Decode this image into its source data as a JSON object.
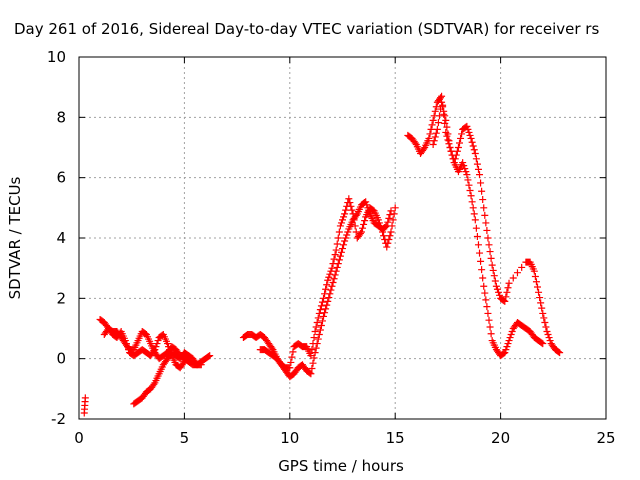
{
  "chart_data": {
    "type": "scatter",
    "title": "Day 261 of 2016, Sidereal Day-to-day VTEC variation (SDTVAR) for receiver rs",
    "xlabel": "GPS time / hours",
    "ylabel": "SDTVAR / TECUs",
    "xlim": [
      0,
      25
    ],
    "ylim": [
      -2,
      10
    ],
    "xticks": [
      "0",
      "5",
      "10",
      "15",
      "20",
      "25"
    ],
    "yticks": [
      "-2",
      "0",
      "2",
      "4",
      "6",
      "8",
      "10"
    ],
    "grid": true,
    "marker": "+",
    "series": [
      {
        "color": "#ff0000",
        "segments": [
          {
            "x": [
              0.25,
              0.3
            ],
            "y": [
              -1.8,
              -1.3
            ]
          },
          {
            "x": [
              1.0,
              1.2,
              1.4,
              1.6,
              1.8,
              2.0,
              2.2,
              2.4,
              2.6,
              2.8,
              3.0,
              3.2,
              3.4,
              3.6,
              3.8,
              4.0,
              4.2,
              4.4,
              4.6,
              4.8,
              5.0,
              5.2,
              5.4,
              5.6,
              5.8,
              6.0,
              6.2
            ],
            "y": [
              1.3,
              1.2,
              1.0,
              0.9,
              0.9,
              0.7,
              0.5,
              0.3,
              0.3,
              0.6,
              0.9,
              0.8,
              0.5,
              0.2,
              0.0,
              0.1,
              0.2,
              0.4,
              0.3,
              0.1,
              0.0,
              -0.1,
              -0.2,
              -0.2,
              -0.1,
              0.0,
              0.1
            ]
          },
          {
            "x": [
              1.2,
              1.4,
              1.6,
              1.8,
              2.0,
              2.2,
              2.4,
              2.6,
              2.8,
              3.0,
              3.2,
              3.4,
              3.6,
              3.8,
              4.0,
              4.2,
              4.4,
              4.6,
              4.8,
              5.0,
              5.2,
              5.4,
              5.6,
              5.8
            ],
            "y": [
              0.8,
              1.0,
              0.8,
              0.7,
              0.9,
              0.6,
              0.2,
              0.1,
              0.2,
              0.3,
              0.2,
              0.1,
              0.3,
              0.7,
              0.8,
              0.5,
              0.1,
              -0.2,
              -0.3,
              -0.1,
              0.1,
              0.0,
              -0.2,
              -0.2
            ]
          },
          {
            "x": [
              2.6,
              2.8,
              3.0,
              3.2,
              3.4,
              3.6,
              3.8,
              4.0,
              4.2,
              4.4,
              4.6,
              4.8,
              5.0,
              5.2
            ],
            "y": [
              -1.5,
              -1.4,
              -1.3,
              -1.1,
              -1.0,
              -0.8,
              -0.5,
              -0.2,
              0.0,
              0.2,
              0.1,
              0.0,
              0.2,
              0.1
            ]
          },
          {
            "x": [
              7.8,
              8.0,
              8.2,
              8.4,
              8.6,
              8.8,
              9.0,
              9.2,
              9.4,
              9.6,
              9.8,
              10.0,
              10.2,
              10.4,
              10.6,
              10.8,
              11.0,
              11.2,
              11.4,
              11.6,
              11.8,
              12.0,
              12.2,
              12.4,
              12.6,
              12.8,
              13.0,
              13.2,
              13.4,
              13.6,
              13.8,
              14.0,
              14.2,
              14.4,
              14.6,
              14.8
            ],
            "y": [
              0.7,
              0.8,
              0.8,
              0.7,
              0.8,
              0.7,
              0.5,
              0.3,
              0.0,
              -0.2,
              -0.4,
              -0.6,
              -0.5,
              -0.3,
              -0.2,
              -0.4,
              -0.5,
              0.2,
              0.8,
              1.4,
              1.9,
              2.4,
              2.9,
              3.4,
              3.9,
              4.3,
              4.6,
              4.8,
              5.1,
              5.2,
              4.8,
              4.5,
              4.4,
              4.3,
              4.4,
              4.9
            ]
          },
          {
            "x": [
              8.6,
              8.8,
              9.0,
              9.2,
              9.4,
              9.6,
              9.8,
              10.0,
              10.2,
              10.4,
              10.6,
              10.8,
              11.0,
              11.2,
              11.4,
              11.6,
              11.8,
              12.0,
              12.2,
              12.4,
              12.6,
              12.8,
              13.0,
              13.2,
              13.4,
              13.6,
              13.8,
              14.0,
              14.2,
              14.4,
              14.6,
              14.8,
              15.0
            ],
            "y": [
              0.3,
              0.3,
              0.2,
              0.1,
              0.0,
              -0.2,
              -0.3,
              -0.3,
              0.4,
              0.5,
              0.4,
              0.4,
              0.1,
              0.9,
              1.5,
              2.0,
              2.6,
              3.0,
              3.6,
              4.4,
              4.8,
              5.3,
              4.8,
              4.0,
              4.2,
              4.7,
              5.0,
              4.9,
              4.6,
              4.2,
              3.7,
              4.2,
              5.0
            ]
          },
          {
            "x": [
              15.6,
              15.8,
              16.0,
              16.2,
              16.4,
              16.6,
              16.8,
              17.0,
              17.2,
              17.4,
              17.6,
              17.8,
              18.0,
              18.2,
              18.4,
              18.6,
              18.8,
              19.0,
              19.2,
              19.4,
              19.6,
              19.8,
              20.0,
              20.2,
              20.4,
              20.6,
              20.8,
              21.0,
              21.2,
              21.4,
              21.6,
              21.8,
              22.0
            ],
            "y": [
              7.4,
              7.3,
              7.1,
              6.8,
              7.0,
              7.3,
              7.9,
              8.5,
              8.7,
              7.5,
              7.0,
              6.5,
              6.2,
              6.5,
              6.1,
              5.4,
              4.6,
              3.5,
              2.4,
              1.5,
              0.6,
              0.3,
              0.1,
              0.2,
              0.6,
              1.0,
              1.2,
              1.1,
              1.0,
              0.9,
              0.7,
              0.6,
              0.5
            ]
          },
          {
            "x": [
              16.8,
              17.0,
              17.2,
              17.4,
              17.6,
              17.8,
              18.0,
              18.2,
              18.4,
              18.6,
              18.8,
              19.0,
              19.2,
              19.4,
              19.6,
              19.8,
              20.0,
              20.2,
              20.4,
              21.2,
              21.4,
              21.6,
              21.8,
              22.0,
              22.2,
              22.4,
              22.6,
              22.8
            ],
            "y": [
              7.1,
              7.6,
              8.5,
              7.9,
              7.0,
              6.5,
              7.0,
              7.6,
              7.7,
              7.3,
              6.8,
              6.1,
              5.0,
              4.0,
              3.1,
              2.4,
              2.0,
              1.9,
              2.5,
              3.2,
              3.2,
              2.9,
              2.2,
              1.5,
              0.9,
              0.5,
              0.3,
              0.2
            ]
          }
        ]
      }
    ]
  }
}
